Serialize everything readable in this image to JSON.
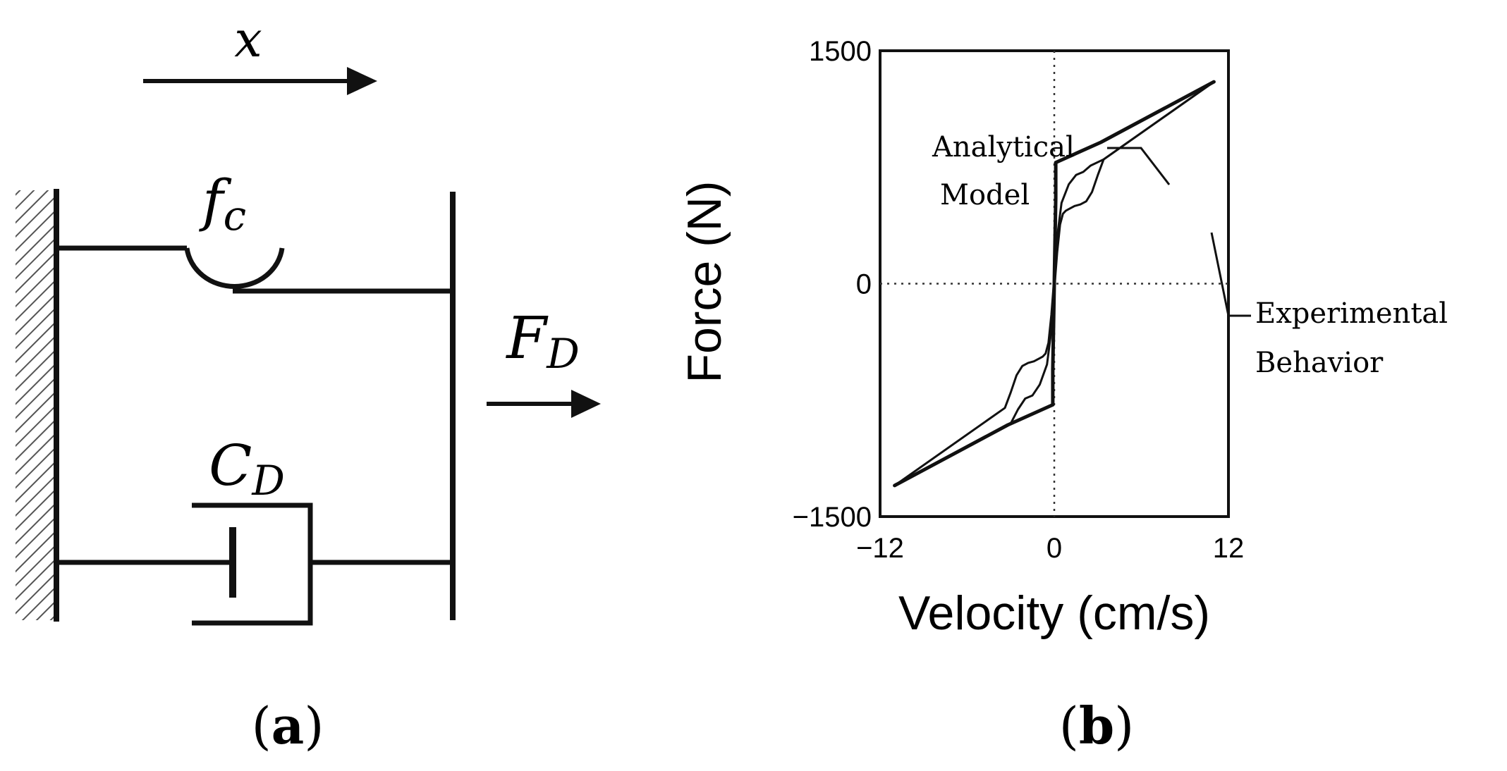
{
  "panel_a": {
    "label": "a",
    "symbols": {
      "displacement": "x",
      "friction_base": "f",
      "friction_sub": "c",
      "force_base": "F",
      "force_sub": "D",
      "damping_base": "C",
      "damping_sub": "D"
    }
  },
  "panel_b": {
    "label": "b",
    "annotations": {
      "analytical_line1": "Analytical",
      "analytical_line2": "Model",
      "experimental_line1": "Experimental",
      "experimental_line2": "Behavior"
    }
  },
  "chart_data": {
    "type": "line",
    "title": "",
    "xlabel": "Velocity (cm/s)",
    "ylabel": "Force (N)",
    "xlim": [
      -12,
      12
    ],
    "ylim": [
      -1500,
      1500
    ],
    "x_tick_labels": [
      "−12",
      "0",
      "12"
    ],
    "y_tick_labels": [
      "1500",
      "0",
      "−1500"
    ],
    "zero_lines": "dotted",
    "series": [
      {
        "x": [
          -11,
          -3.2,
          -0.1,
          -0.1,
          0,
          0.1,
          0.1,
          3.2,
          11
        ],
        "y": [
          -1300,
          -910,
          -780,
          -550,
          0,
          550,
          780,
          910,
          1300
        ]
      },
      {
        "x": [
          -11,
          -3,
          -2.5,
          -2,
          -1.5,
          -1,
          -0.5,
          -0.2,
          0,
          0.2,
          0.4,
          0.6,
          0.8,
          1.0,
          1.4,
          1.8,
          2.2,
          2.6,
          3.0,
          3.4,
          11
        ],
        "y": [
          -1300,
          -900,
          -810,
          -740,
          -720,
          -650,
          -520,
          -300,
          -40,
          200,
          380,
          450,
          470,
          480,
          500,
          510,
          530,
          590,
          700,
          800,
          1300
        ]
      },
      {
        "x": [
          11,
          3.4,
          2.5,
          2,
          1.5,
          1,
          0.5,
          0.2,
          0,
          -0.2,
          -0.4,
          -0.6,
          -0.8,
          -1.0,
          -1.4,
          -1.8,
          -2.2,
          -2.6,
          -3.0,
          -3.4,
          -11
        ],
        "y": [
          1300,
          800,
          760,
          720,
          700,
          640,
          520,
          300,
          40,
          -200,
          -380,
          -450,
          -470,
          -480,
          -500,
          -510,
          -530,
          -590,
          -700,
          -800,
          -1300
        ]
      }
    ]
  }
}
